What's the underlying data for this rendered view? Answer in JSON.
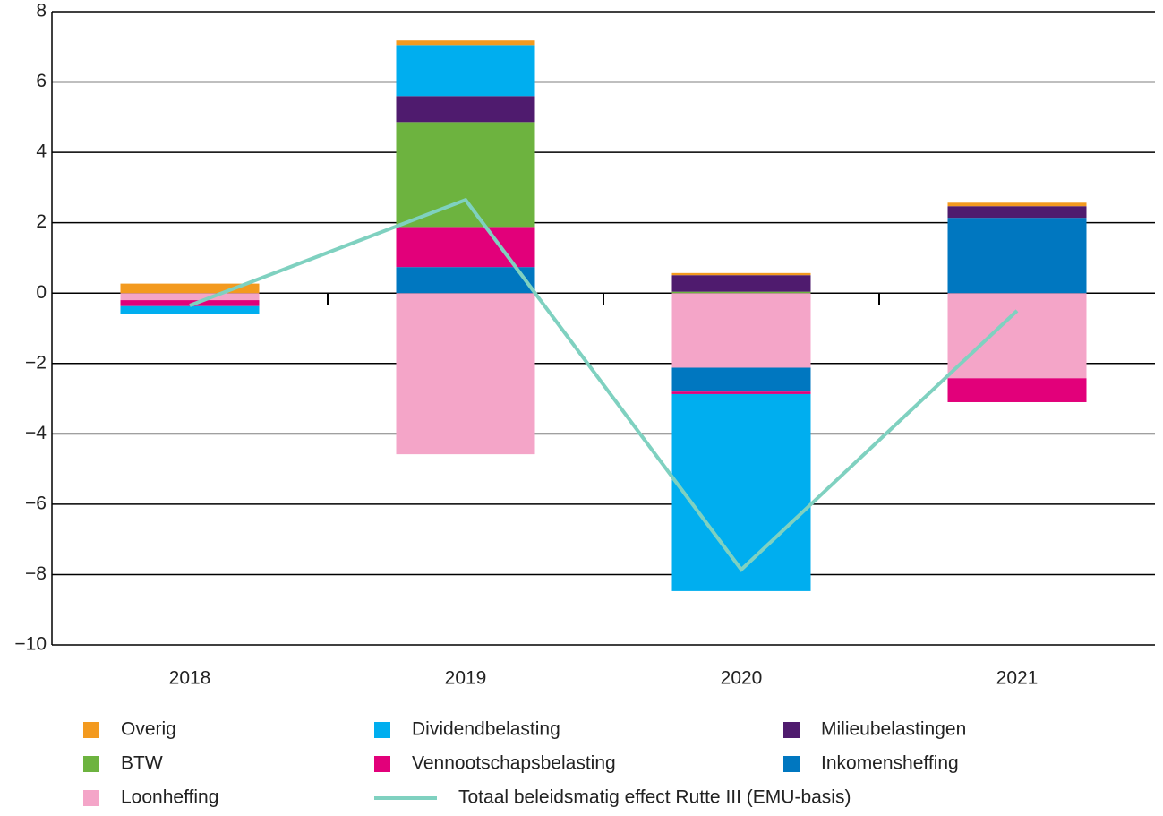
{
  "chart_data": {
    "type": "bar",
    "stacked": true,
    "categories": [
      "2018",
      "2019",
      "2020",
      "2021"
    ],
    "series": [
      {
        "name": "Loonheffing",
        "color": "#f4a5c8",
        "values": [
          -0.2,
          -4.58,
          -2.12,
          -2.42
        ]
      },
      {
        "name": "Inkomensheffing",
        "color": "#0077c0",
        "values": [
          0,
          0.74,
          -0.68,
          2.14
        ]
      },
      {
        "name": "Vennootschapsbelasting",
        "color": "#e2007a",
        "values": [
          -0.17,
          1.14,
          -0.07,
          -0.68
        ]
      },
      {
        "name": "BTW",
        "color": "#6db33f",
        "values": [
          0,
          2.98,
          0.04,
          0
        ]
      },
      {
        "name": "Milieubelastingen",
        "color": "#4f1b6e",
        "values": [
          0,
          0.74,
          0.47,
          0.33
        ]
      },
      {
        "name": "Dividendbelasting",
        "color": "#00aeef",
        "values": [
          -0.23,
          1.45,
          -5.6,
          0
        ]
      },
      {
        "name": "Overig",
        "color": "#f39a1f",
        "values": [
          0.27,
          0.13,
          0.06,
          0.1
        ]
      }
    ],
    "line": {
      "name": "Totaal beleidsmatig effect Rutte III (EMU-basis)",
      "color": "#7fd1c0",
      "values": [
        -0.35,
        2.65,
        -7.86,
        -0.5
      ]
    },
    "ylim": [
      -10,
      8
    ],
    "yticks": [
      {
        "value": -10,
        "label": "−10"
      },
      {
        "value": -8,
        "label": "−8"
      },
      {
        "value": -6,
        "label": "−6"
      },
      {
        "value": -4,
        "label": "−4"
      },
      {
        "value": -2,
        "label": "−2"
      },
      0,
      2,
      4,
      6,
      8
    ],
    "grid": true
  }
}
